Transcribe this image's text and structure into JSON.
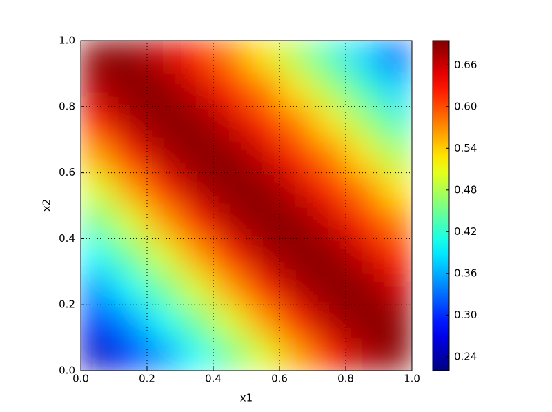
{
  "chart_data": {
    "type": "heatmap",
    "x_label": "x1",
    "y_label": "x2",
    "xlim": [
      0,
      1
    ],
    "ylim": [
      0,
      1
    ],
    "xticks": [
      {
        "value": 0,
        "label": "0.0"
      },
      0.2,
      0.4,
      0.6,
      0.8,
      {
        "value": 1,
        "label": "1.0"
      }
    ],
    "yticks": [
      {
        "value": 0,
        "label": "0.0"
      },
      0.2,
      0.4,
      0.6,
      0.8,
      {
        "value": 1,
        "label": "1.0"
      }
    ],
    "grid": true,
    "colormap": "jet",
    "x": [
      0.05,
      0.15,
      0.25,
      0.35,
      0.45,
      0.55,
      0.65,
      0.75,
      0.85,
      0.95
    ],
    "y": [
      0.05,
      0.15,
      0.25,
      0.35,
      0.45,
      0.55,
      0.65,
      0.75,
      0.85,
      0.95
    ],
    "z": [
      [
        0.25,
        0.3,
        0.35,
        0.4,
        0.45,
        0.5,
        0.56,
        0.62,
        0.67,
        0.69
      ],
      [
        0.3,
        0.35,
        0.4,
        0.45,
        0.5,
        0.56,
        0.62,
        0.67,
        0.69,
        0.69
      ],
      [
        0.35,
        0.4,
        0.45,
        0.5,
        0.56,
        0.62,
        0.67,
        0.69,
        0.69,
        0.66
      ],
      [
        0.4,
        0.45,
        0.5,
        0.56,
        0.62,
        0.67,
        0.69,
        0.69,
        0.66,
        0.62
      ],
      [
        0.45,
        0.5,
        0.56,
        0.62,
        0.67,
        0.69,
        0.69,
        0.66,
        0.62,
        0.58
      ],
      [
        0.5,
        0.56,
        0.62,
        0.67,
        0.69,
        0.69,
        0.66,
        0.62,
        0.58,
        0.53
      ],
      [
        0.56,
        0.62,
        0.67,
        0.69,
        0.69,
        0.66,
        0.62,
        0.58,
        0.53,
        0.48
      ],
      [
        0.62,
        0.67,
        0.69,
        0.69,
        0.66,
        0.62,
        0.58,
        0.53,
        0.48,
        0.43
      ],
      [
        0.67,
        0.69,
        0.69,
        0.66,
        0.62,
        0.58,
        0.53,
        0.48,
        0.43,
        0.38
      ],
      [
        0.69,
        0.69,
        0.66,
        0.62,
        0.58,
        0.53,
        0.48,
        0.43,
        0.38,
        0.33
      ]
    ],
    "zlim": [
      0.22,
      0.695
    ],
    "colorbar_ticks": [
      0.24,
      {
        "value": 0.3,
        "label": "0.30"
      },
      0.36,
      0.42,
      0.48,
      0.54,
      {
        "value": 0.6,
        "label": "0.60"
      },
      0.66
    ]
  }
}
